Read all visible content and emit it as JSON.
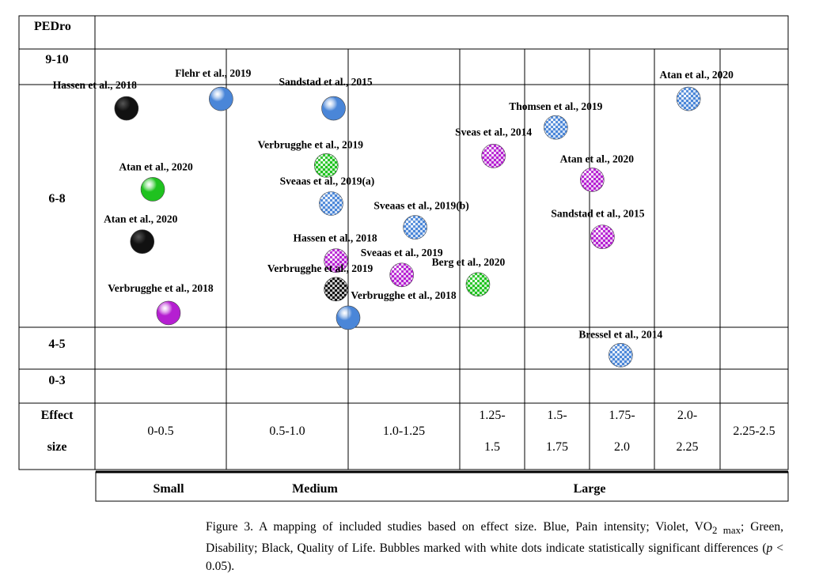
{
  "chart_data": {
    "type": "bubble-matrix",
    "row_axis_title": "PEDro",
    "rows": [
      "9-10",
      "6-8",
      "4-5",
      "0-3"
    ],
    "effect_size_label_top": "Effect",
    "effect_size_label_bottom": "size",
    "columns": [
      {
        "range": [
          0,
          0.5
        ],
        "label_lines": [
          "0-0.5"
        ]
      },
      {
        "range": [
          0.5,
          1.0
        ],
        "label_lines": [
          "0.5-1.0"
        ]
      },
      {
        "range": [
          1.0,
          1.25
        ],
        "label_lines": [
          "1.0-1.25"
        ]
      },
      {
        "range": [
          1.25,
          1.5
        ],
        "label_lines": [
          "1.25-",
          "1.5"
        ]
      },
      {
        "range": [
          1.5,
          1.75
        ],
        "label_lines": [
          "1.5-",
          "1.75"
        ]
      },
      {
        "range": [
          1.75,
          2.0
        ],
        "label_lines": [
          "1.75-",
          "2.0"
        ]
      },
      {
        "range": [
          2.0,
          2.25
        ],
        "label_lines": [
          "2.0-",
          "2.25"
        ]
      },
      {
        "range": [
          2.25,
          2.5
        ],
        "label_lines": [
          "2.25-2.5"
        ]
      }
    ],
    "categories": [
      {
        "label": "Small",
        "range": [
          0,
          0.5
        ]
      },
      {
        "label": "Medium",
        "range": [
          0.5,
          1.0
        ]
      },
      {
        "label": "Large",
        "range": [
          1.0,
          2.5
        ]
      }
    ],
    "outcome_colors": {
      "pain": "#4a86d8",
      "vo2": "#b51fd1",
      "disability": "#1fc21f",
      "qol": "#111111"
    },
    "points": [
      {
        "study": "Hassen et al., 2018",
        "outcome": "qol",
        "significant": false,
        "effect_size": 0.12,
        "pedro": 7.8
      },
      {
        "study": "Flehr et al., 2019",
        "outcome": "pain",
        "significant": false,
        "effect_size": 0.48,
        "pedro": 7.9
      },
      {
        "study": "Sandstad et al., 2015",
        "outcome": "pain",
        "significant": false,
        "effect_size": 0.94,
        "pedro": 7.8
      },
      {
        "study": "Sveas et al., 2014",
        "outcome": "vo2",
        "significant": true,
        "effect_size": 1.38,
        "pedro": 7.3
      },
      {
        "study": "Verbrugghe et al., 2019",
        "outcome": "disability",
        "significant": true,
        "effect_size": 0.91,
        "pedro": 7.2
      },
      {
        "study": "Atan et al., 2020",
        "outcome": "vo2",
        "significant": true,
        "effect_size": 1.76,
        "pedro": 7.05
      },
      {
        "study": "Atan et al., 2020",
        "outcome": "disability",
        "significant": false,
        "effect_size": 0.22,
        "pedro": 6.95
      },
      {
        "study": "Sveaas et al., 2019(a)",
        "outcome": "pain",
        "significant": true,
        "effect_size": 0.93,
        "pedro": 6.8
      },
      {
        "study": "Sveaas et al., 2019(b)",
        "outcome": "pain",
        "significant": true,
        "effect_size": 1.15,
        "pedro": 6.55
      },
      {
        "study": "Atan et al., 2020",
        "outcome": "qol",
        "significant": false,
        "effect_size": 0.18,
        "pedro": 6.4
      },
      {
        "study": "Sandstad et al., 2015",
        "outcome": "vo2",
        "significant": true,
        "effect_size": 1.8,
        "pedro": 6.45
      },
      {
        "study": "Hassen et al., 2018",
        "outcome": "vo2",
        "significant": true,
        "effect_size": 0.95,
        "pedro": 6.2
      },
      {
        "study": "Sveaas et al., 2019",
        "outcome": "vo2",
        "significant": true,
        "effect_size": 1.12,
        "pedro": 6.05
      },
      {
        "study": "Berg et al., 2020",
        "outcome": "disability",
        "significant": true,
        "effect_size": 1.32,
        "pedro": 5.95
      },
      {
        "study": "Verbrugghe et al., 2019",
        "outcome": "qol",
        "significant": true,
        "effect_size": 0.95,
        "pedro": 5.9
      },
      {
        "study": "Verbrugghe et al., 2018",
        "outcome": "vo2",
        "significant": false,
        "effect_size": 0.28,
        "pedro": 5.65
      },
      {
        "study": "Verbrugghe et al., 2018",
        "outcome": "pain",
        "significant": false,
        "effect_size": 1.0,
        "pedro": 5.6
      },
      {
        "study": "Thomsen et al., 2019",
        "outcome": "pain",
        "significant": true,
        "effect_size": 1.62,
        "pedro": 7.6
      },
      {
        "study": "Atan et al., 2020",
        "outcome": "pain",
        "significant": true,
        "effect_size": 2.13,
        "pedro": 7.9
      },
      {
        "study": "Bressel et al., 2014",
        "outcome": "pain",
        "significant": true,
        "effect_size": 1.87,
        "pedro": 4.5
      }
    ]
  },
  "caption": {
    "fig_label": "Figure 3.",
    "text_before_vo2": " A mapping of included studies based on effect size. Blue, Pain intensity; Violet, VO",
    "vo2_sub": "2 max",
    "text_after_vo2": "; Green, Disability; Black, Quality of Life.  Bubbles marked with white dots indicate statistically significant differences (",
    "p_symbol": "p",
    "text_end": " < 0.05)."
  }
}
